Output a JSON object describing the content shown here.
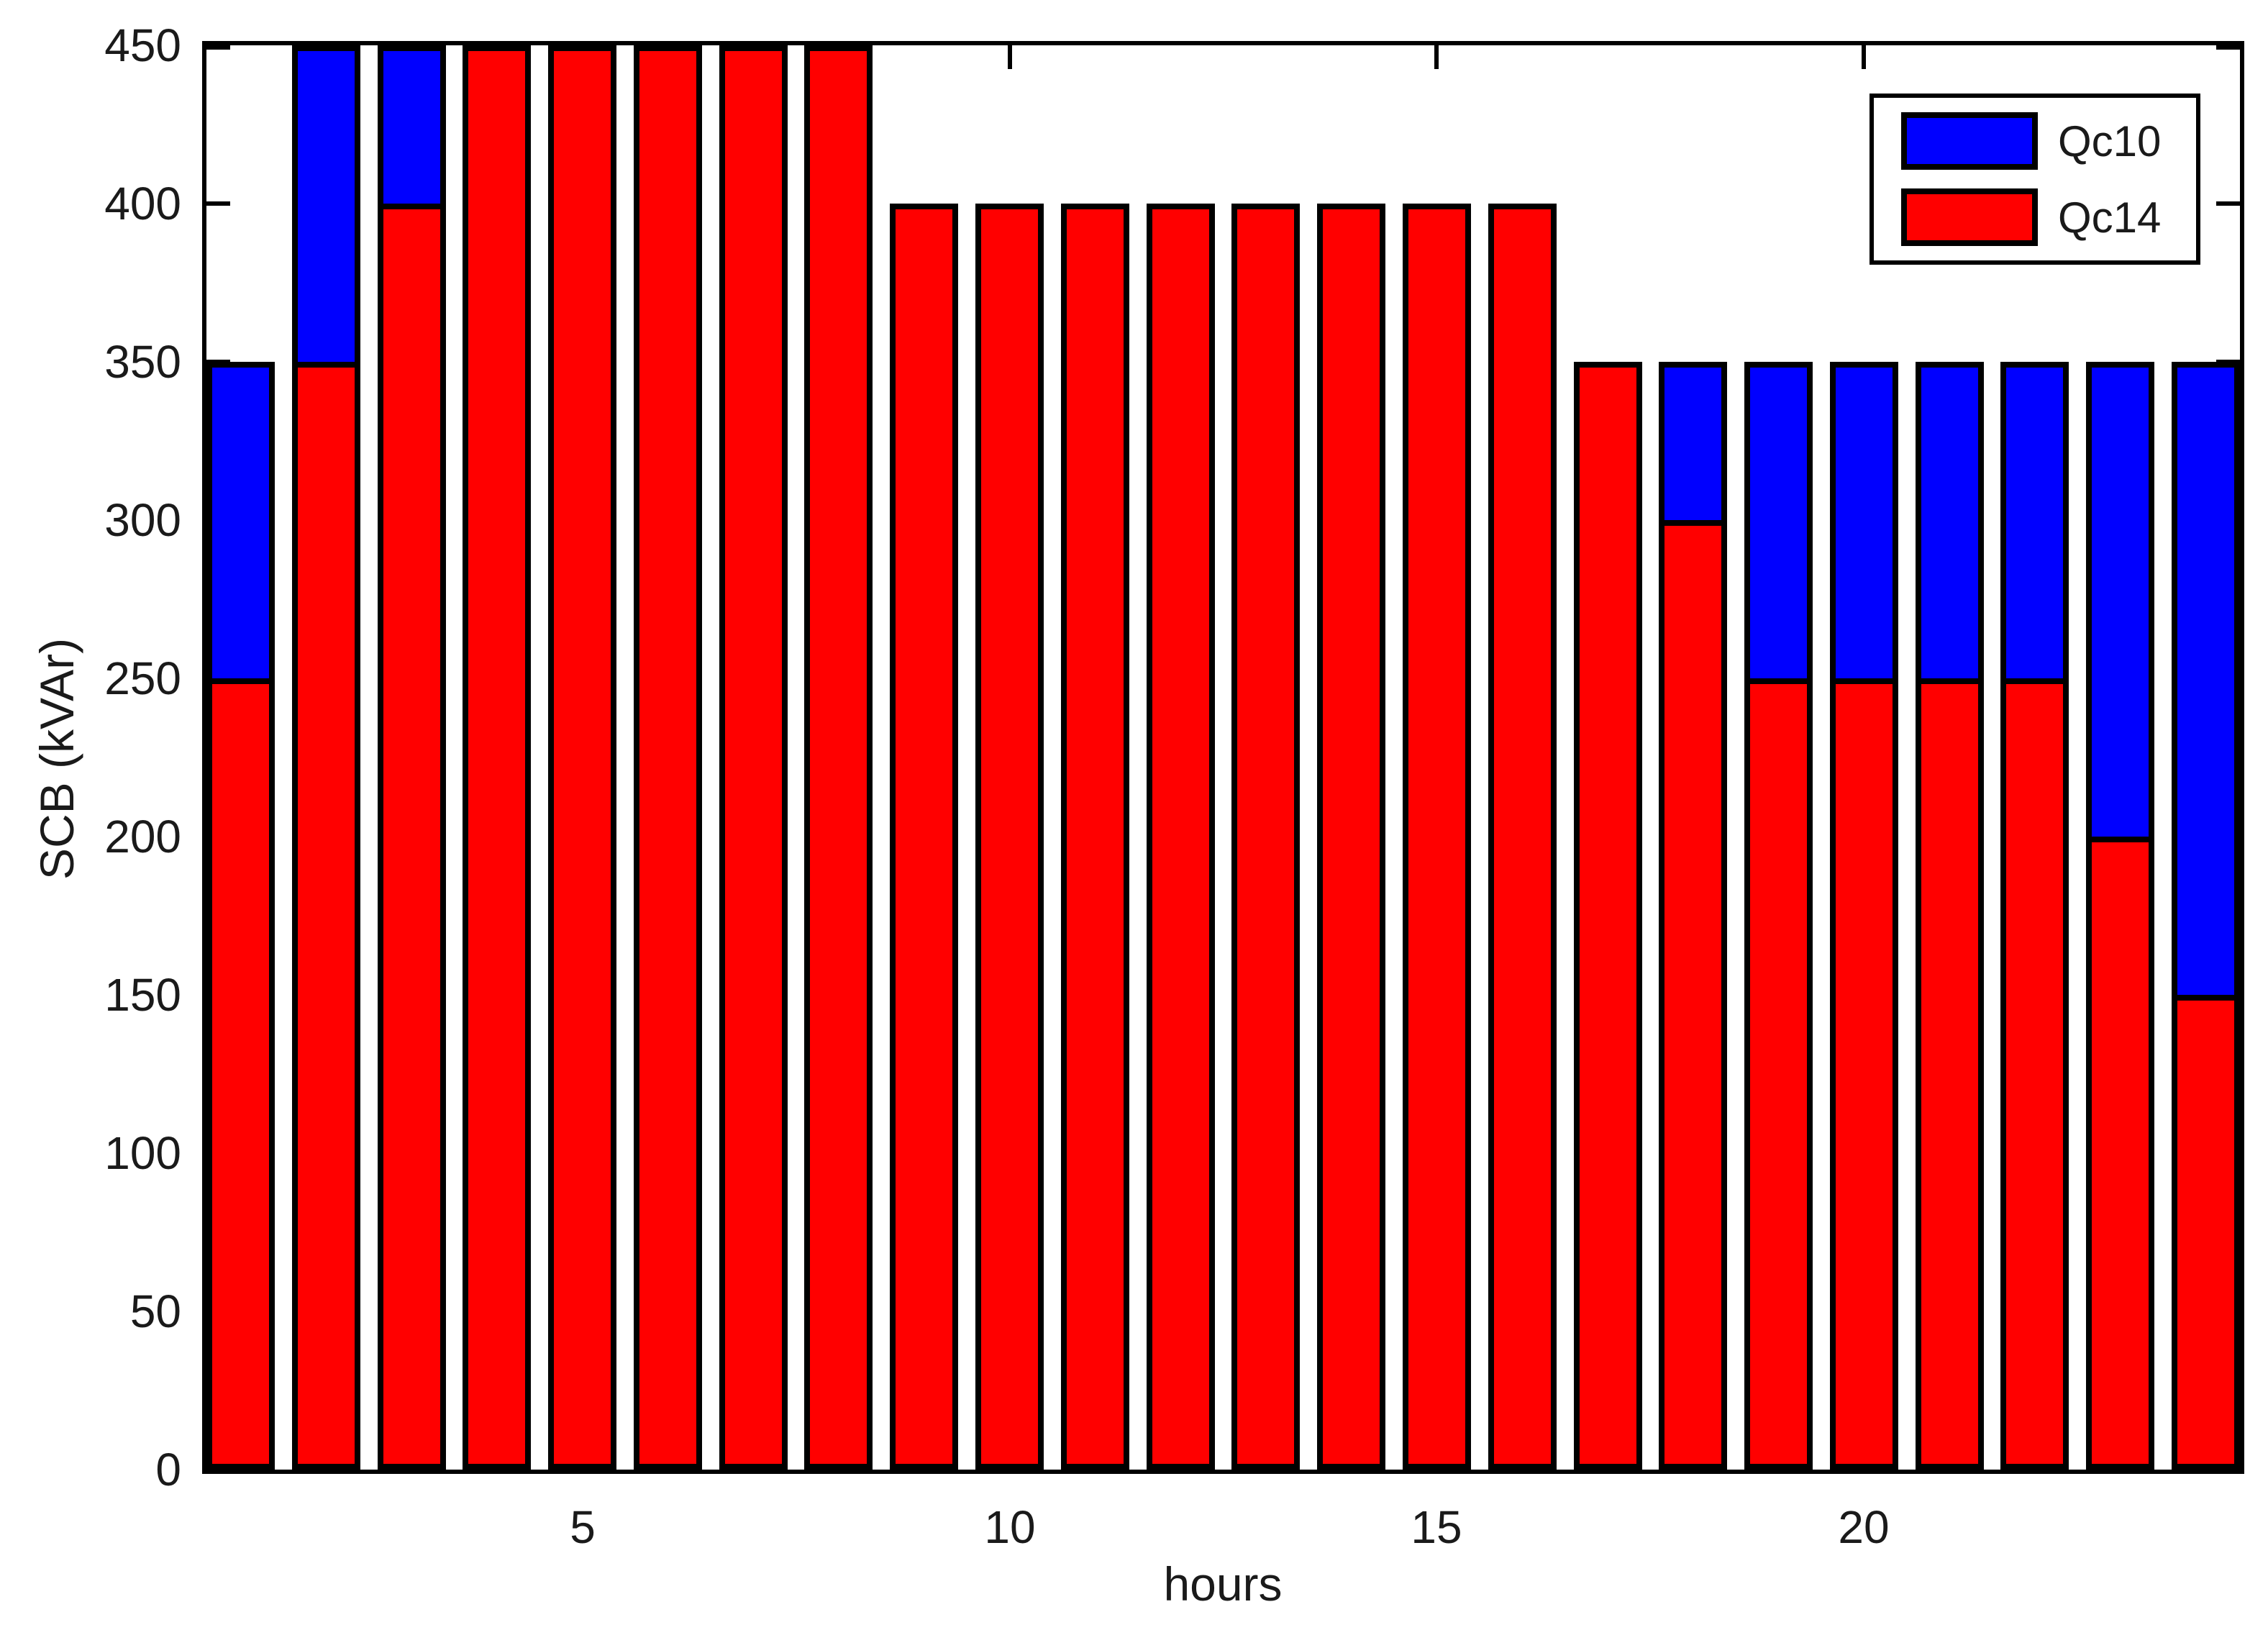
{
  "chart_data": {
    "type": "bar",
    "stacked": true,
    "orientation": "vertical",
    "title": "",
    "xlabel": "hours",
    "ylabel": "SCB (kVAr)",
    "x": [
      1,
      2,
      3,
      4,
      5,
      6,
      7,
      8,
      9,
      10,
      11,
      12,
      13,
      14,
      15,
      16,
      17,
      18,
      19,
      20,
      21,
      22,
      23,
      24
    ],
    "series": [
      {
        "name": "Qc14",
        "color": "#ff0000",
        "stack_position": "bottom",
        "values": [
          250,
          350,
          400,
          450,
          450,
          450,
          450,
          450,
          400,
          400,
          400,
          400,
          400,
          400,
          400,
          400,
          350,
          300,
          250,
          250,
          250,
          250,
          200,
          150
        ]
      },
      {
        "name": "Qc10",
        "color": "#0000ff",
        "stack_position": "top",
        "values": [
          100,
          100,
          50,
          0,
          0,
          0,
          0,
          0,
          0,
          0,
          0,
          0,
          0,
          0,
          0,
          0,
          0,
          50,
          100,
          100,
          100,
          100,
          150,
          200
        ]
      }
    ],
    "bar_totals": [
      350,
      450,
      450,
      450,
      450,
      450,
      450,
      450,
      400,
      400,
      400,
      400,
      400,
      400,
      400,
      400,
      350,
      350,
      350,
      350,
      350,
      350,
      350,
      350
    ],
    "ylim": [
      0,
      450
    ],
    "yticks": [
      0,
      50,
      100,
      150,
      200,
      250,
      300,
      350,
      400,
      450
    ],
    "xticks": [
      5,
      10,
      15,
      20
    ],
    "grid": false,
    "bar_edge_color": "#000000",
    "axis_color": "#000000",
    "text_color": "#1a1a1a",
    "legend": {
      "position": "top-right",
      "entries": [
        {
          "label": "Qc10",
          "color": "#0000ff"
        },
        {
          "label": "Qc14",
          "color": "#ff0000"
        }
      ]
    }
  }
}
